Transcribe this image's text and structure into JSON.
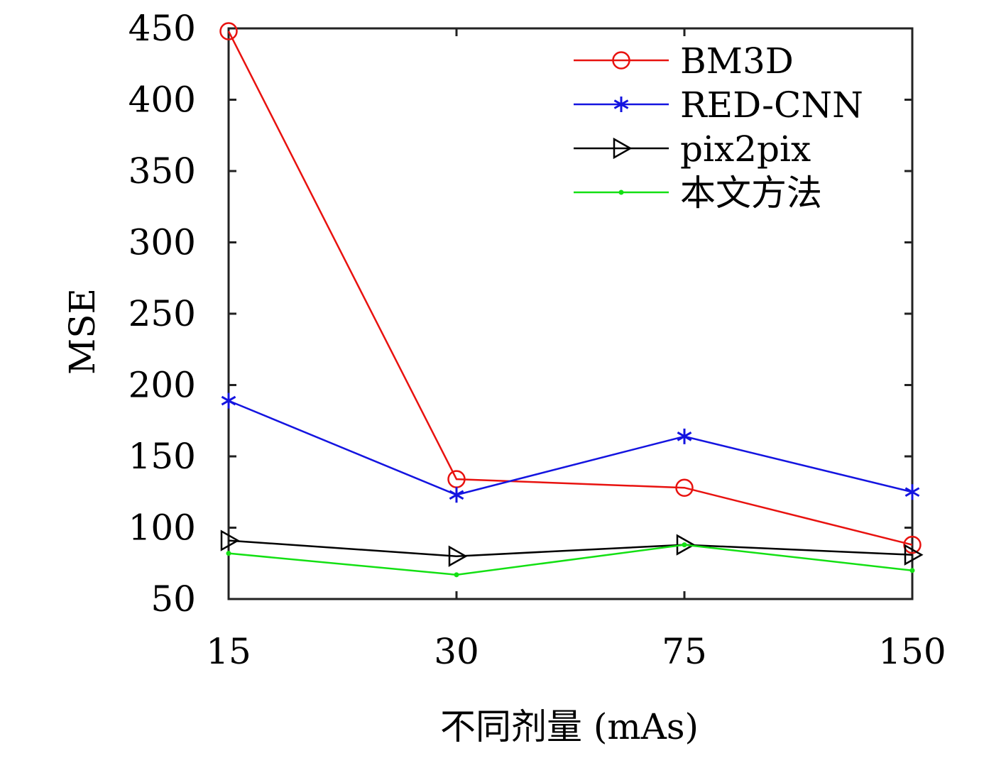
{
  "chart_data": {
    "type": "line",
    "title": "",
    "xlabel": "不同剂量 (mAs)",
    "ylabel": "MSE",
    "categories": [
      "15",
      "30",
      "75",
      "150"
    ],
    "ylim": [
      50,
      450
    ],
    "yticks": [
      50,
      100,
      150,
      200,
      250,
      300,
      350,
      400,
      450
    ],
    "grid": false,
    "legend_position": "top-right",
    "series": [
      {
        "name": "BM3D",
        "color": "#e8120f",
        "marker": "circle",
        "values": [
          448,
          134,
          128,
          88
        ]
      },
      {
        "name": "RED-CNN",
        "color": "#1414e0",
        "marker": "asterisk",
        "values": [
          189,
          123,
          164,
          125
        ]
      },
      {
        "name": "pix2pix",
        "color": "#000000",
        "marker": "triangle-right",
        "values": [
          91,
          80,
          88,
          81
        ]
      },
      {
        "name": "本文方法",
        "color": "#13e013",
        "marker": "dot",
        "values": [
          82,
          67,
          88,
          70
        ]
      }
    ]
  }
}
